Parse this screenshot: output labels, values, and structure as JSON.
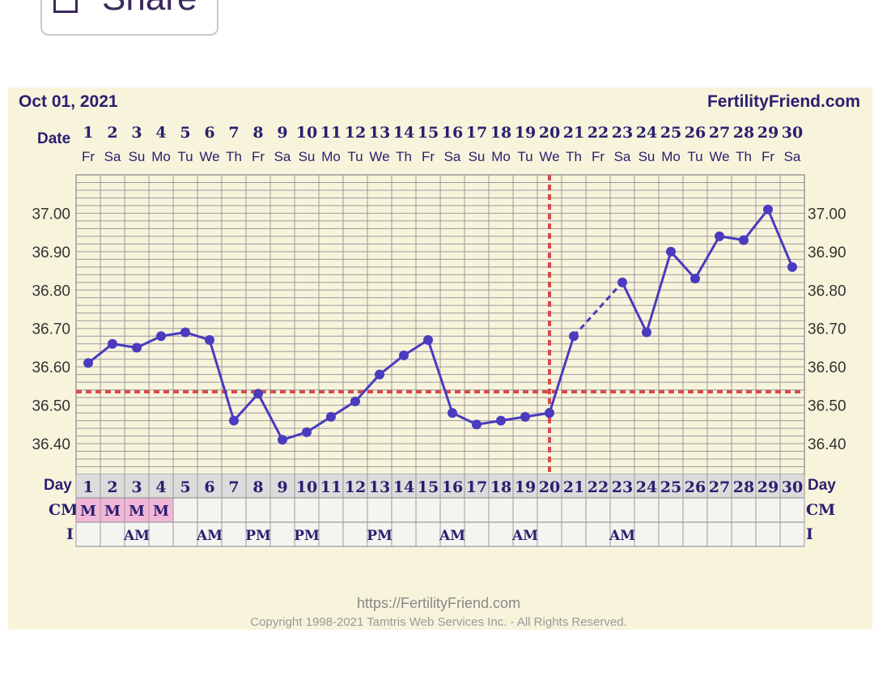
{
  "share_button": {
    "label": "Share"
  },
  "header": {
    "date": "Oct 01, 2021",
    "site": "FertilityFriend.com"
  },
  "labels": {
    "date": "Date",
    "day": "Day",
    "cm": "CM",
    "i": "I"
  },
  "colors": {
    "line": "#4a3bbf",
    "coverline": "#d94a4a",
    "grid": "#9a9a9a",
    "panel": "#f8f4dc",
    "cm_highlight": "#f2b6d6"
  },
  "chart_data": {
    "type": "line",
    "x": [
      1,
      2,
      3,
      4,
      5,
      6,
      7,
      8,
      9,
      10,
      11,
      12,
      13,
      14,
      15,
      16,
      17,
      18,
      19,
      20,
      21,
      22,
      23,
      24,
      25,
      26,
      27,
      28,
      29,
      30
    ],
    "weekdays": [
      "Fr",
      "Sa",
      "Su",
      "Mo",
      "Tu",
      "We",
      "Th",
      "Fr",
      "Sa",
      "Su",
      "Mo",
      "Tu",
      "We",
      "Th",
      "Fr",
      "Sa",
      "Su",
      "Mo",
      "Tu",
      "We",
      "Th",
      "Fr",
      "Sa",
      "Su",
      "Mo",
      "Tu",
      "We",
      "Th",
      "Fr",
      "Sa"
    ],
    "series": [
      {
        "values": [
          36.61,
          36.66,
          36.65,
          36.68,
          36.69,
          36.67,
          36.46,
          36.53,
          36.41,
          36.43,
          36.47,
          36.51,
          36.58,
          36.63,
          36.67,
          36.48,
          36.45,
          36.46,
          36.47,
          36.48,
          36.68,
          null,
          36.82,
          36.69,
          36.9,
          36.83,
          36.94,
          36.93,
          37.01,
          36.86
        ]
      }
    ],
    "dashed_segments": [
      [
        21,
        23
      ]
    ],
    "ylim": [
      36.32,
      37.1
    ],
    "yticks": [
      "36.40",
      "36.50",
      "36.60",
      "36.70",
      "36.80",
      "36.90",
      "37.00"
    ],
    "coverline": 36.535,
    "ovulation_day": 20,
    "cm": [
      "M",
      "M",
      "M",
      "M",
      "",
      "",
      "",
      "",
      "",
      "",
      "",
      "",
      "",
      "",
      "",
      "",
      "",
      "",
      "",
      "",
      "",
      "",
      "",
      "",
      "",
      "",
      "",
      "",
      "",
      ""
    ],
    "intercourse": [
      "",
      "",
      "AM",
      "",
      "",
      "AM",
      "",
      "PM",
      "",
      "PM",
      "",
      "",
      "PM",
      "",
      "",
      "AM",
      "",
      "",
      "AM",
      "",
      "",
      "",
      "AM",
      "",
      "",
      "",
      "",
      "",
      "",
      ""
    ]
  },
  "footer": {
    "url": "https://FertilityFriend.com",
    "copyright": "Copyright 1998-2021 Tamtris Web Services Inc. - All Rights Reserved."
  }
}
